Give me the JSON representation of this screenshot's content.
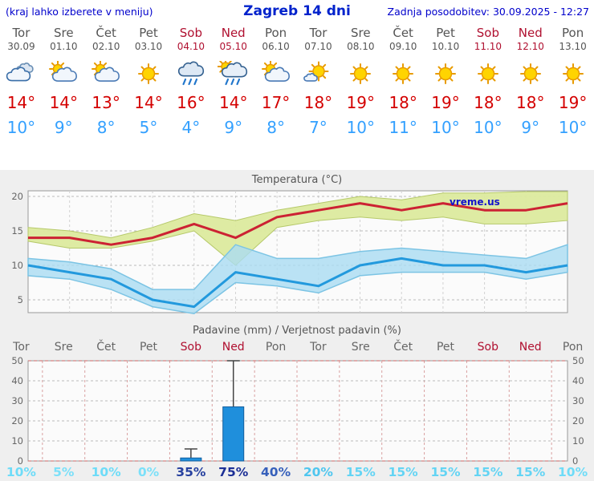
{
  "header": {
    "left_note": "(kraj lahko izberete v meniju)",
    "title": "Zagreb 14 dni",
    "last_update": "Zadnja posodobitev: 30.09.2025 - 12:27"
  },
  "colors": {
    "link_blue": "#0000cc",
    "weekday_gray": "#555555",
    "weekend_red": "#b01030",
    "high_temp_red": "#d40000",
    "low_temp_blue": "#33a0ff",
    "temp_max_line": "#cc2233",
    "temp_min_line": "#2299dd",
    "temp_max_band": "#dcea9e",
    "temp_min_band": "#aadcf2",
    "bar_blue": "#1f8fdc",
    "grid_gray": "#bbbbbb",
    "grid_pink": "#d9a0a0",
    "watermark_blue": "#1111cc"
  },
  "days": [
    {
      "name": "Tor",
      "date": "30.09",
      "weekend": false,
      "icon": "cloudy",
      "high": "14°",
      "low": "10°"
    },
    {
      "name": "Sre",
      "date": "01.10",
      "weekend": false,
      "icon": "partly",
      "high": "14°",
      "low": "9°"
    },
    {
      "name": "Čet",
      "date": "02.10",
      "weekend": false,
      "icon": "partly",
      "high": "13°",
      "low": "8°"
    },
    {
      "name": "Pet",
      "date": "03.10",
      "weekend": false,
      "icon": "sunny",
      "high": "14°",
      "low": "5°"
    },
    {
      "name": "Sob",
      "date": "04.10",
      "weekend": true,
      "icon": "rain",
      "high": "16°",
      "low": "4°"
    },
    {
      "name": "Ned",
      "date": "05.10",
      "weekend": true,
      "icon": "rain-sun",
      "high": "14°",
      "low": "9°"
    },
    {
      "name": "Pon",
      "date": "06.10",
      "weekend": false,
      "icon": "partly",
      "high": "17°",
      "low": "8°"
    },
    {
      "name": "Tor",
      "date": "07.10",
      "weekend": false,
      "icon": "mostly",
      "high": "18°",
      "low": "7°"
    },
    {
      "name": "Sre",
      "date": "08.10",
      "weekend": false,
      "icon": "sunny",
      "high": "19°",
      "low": "10°"
    },
    {
      "name": "Čet",
      "date": "09.10",
      "weekend": false,
      "icon": "sunny",
      "high": "18°",
      "low": "11°"
    },
    {
      "name": "Pet",
      "date": "10.10",
      "weekend": false,
      "icon": "sunny",
      "high": "19°",
      "low": "10°"
    },
    {
      "name": "Sob",
      "date": "11.10",
      "weekend": true,
      "icon": "sunny",
      "high": "18°",
      "low": "10°"
    },
    {
      "name": "Ned",
      "date": "12.10",
      "weekend": true,
      "icon": "sunny",
      "high": "18°",
      "low": "9°"
    },
    {
      "name": "Pon",
      "date": "13.10",
      "weekend": false,
      "icon": "sunny",
      "high": "19°",
      "low": "10°"
    }
  ],
  "chart_data": [
    {
      "type": "line",
      "title": "Temperatura (°C)",
      "watermark": "vreme.us",
      "x_labels": [
        "Tor",
        "Sre",
        "Čet",
        "Pet",
        "Sob",
        "Ned",
        "Pon",
        "Tor",
        "Sre",
        "Čet",
        "Pet",
        "Sob",
        "Ned",
        "Pon"
      ],
      "ylim": [
        3,
        21
      ],
      "yticks": [
        5,
        10,
        15,
        20
      ],
      "grid": true,
      "series": [
        {
          "name": "max_temp",
          "values": [
            14,
            14,
            13,
            14,
            16,
            14,
            17,
            18,
            19,
            18,
            19,
            18,
            18,
            19
          ]
        },
        {
          "name": "min_temp",
          "values": [
            10,
            9,
            8,
            5,
            4,
            9,
            8,
            7,
            10,
            11,
            10,
            10,
            9,
            10
          ]
        },
        {
          "name": "max_band_upper",
          "values": [
            15.5,
            15,
            14,
            15.5,
            17.5,
            16.5,
            18,
            19,
            20,
            19.5,
            20.5,
            20.5,
            21.5,
            22.5
          ]
        },
        {
          "name": "max_band_lower",
          "values": [
            13.5,
            12.5,
            12.5,
            13.5,
            15,
            10,
            15.5,
            16.5,
            17,
            16.5,
            17,
            16,
            16,
            16.5
          ]
        },
        {
          "name": "min_band_upper",
          "values": [
            11,
            10.5,
            9.5,
            6.5,
            6.5,
            13,
            11,
            11,
            12,
            12.5,
            12,
            11.5,
            11,
            13
          ]
        },
        {
          "name": "min_band_lower",
          "values": [
            8.5,
            8,
            6.5,
            4,
            3,
            7.5,
            7,
            6,
            8.5,
            9,
            9,
            9,
            8,
            9
          ]
        }
      ]
    },
    {
      "type": "bar",
      "title": "Padavine (mm) / Verjetnost padavin (%)",
      "categories": [
        "Tor",
        "Sre",
        "Čet",
        "Pet",
        "Sob",
        "Ned",
        "Pon",
        "Tor",
        "Sre",
        "Čet",
        "Pet",
        "Sob",
        "Ned",
        "Pon"
      ],
      "weekend": [
        false,
        false,
        false,
        false,
        true,
        true,
        false,
        false,
        false,
        false,
        false,
        true,
        true,
        false
      ],
      "values": [
        0,
        0,
        0,
        0,
        1.5,
        27,
        0,
        0,
        0,
        0,
        0,
        0,
        0,
        0
      ],
      "whisker_max": [
        0,
        0,
        0,
        0,
        6,
        50,
        0,
        0,
        0,
        0,
        0,
        0,
        0,
        0
      ],
      "ylim": [
        0,
        50
      ],
      "yticks": [
        0,
        10,
        20,
        30,
        40,
        50
      ],
      "probabilities": [
        {
          "label": "10%",
          "color": "#6edcf8"
        },
        {
          "label": "5%",
          "color": "#7ce0f9"
        },
        {
          "label": "10%",
          "color": "#6edcf8"
        },
        {
          "label": "0%",
          "color": "#7ce0f9"
        },
        {
          "label": "35%",
          "color": "#27419f"
        },
        {
          "label": "75%",
          "color": "#1c2f96"
        },
        {
          "label": "40%",
          "color": "#3660bb"
        },
        {
          "label": "20%",
          "color": "#4fc6ef"
        },
        {
          "label": "15%",
          "color": "#63d4f4"
        },
        {
          "label": "15%",
          "color": "#63d4f4"
        },
        {
          "label": "15%",
          "color": "#63d4f4"
        },
        {
          "label": "15%",
          "color": "#63d4f4"
        },
        {
          "label": "15%",
          "color": "#63d4f4"
        },
        {
          "label": "10%",
          "color": "#6edcf8"
        }
      ]
    }
  ]
}
